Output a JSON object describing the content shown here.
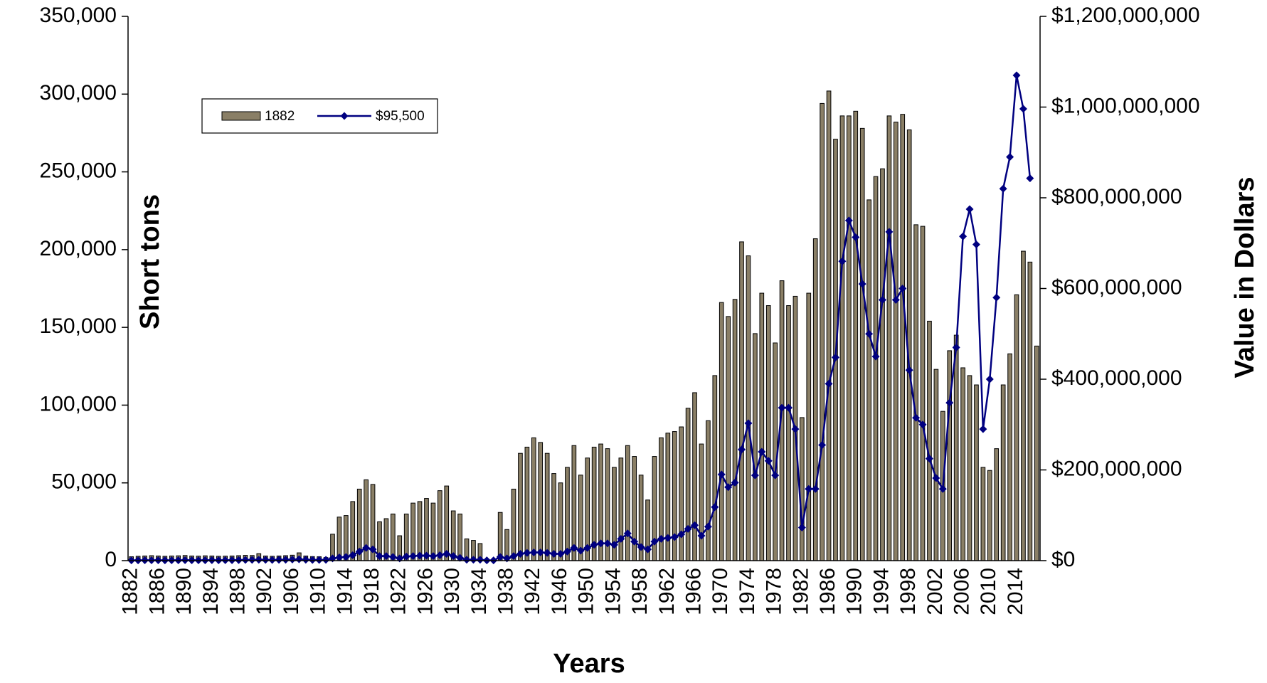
{
  "chart_data": {
    "type": "bar_line",
    "x_label": "Years",
    "y_label": "Short tons",
    "y2_label": "Value in Dollars",
    "categories": [
      "1882",
      null,
      null,
      null,
      "1886",
      null,
      null,
      null,
      "1890",
      null,
      null,
      null,
      "1894",
      null,
      null,
      null,
      "1898",
      null,
      null,
      null,
      "1902",
      null,
      null,
      null,
      "1906",
      null,
      null,
      null,
      "1910",
      null,
      null,
      null,
      "1914",
      null,
      null,
      null,
      "1918",
      null,
      null,
      null,
      "1922",
      null,
      null,
      null,
      "1926",
      null,
      null,
      null,
      "1930",
      null,
      null,
      null,
      "1934",
      null,
      null,
      null,
      "1938",
      null,
      null,
      null,
      "1942",
      null,
      null,
      null,
      "1946",
      null,
      null,
      null,
      "1950",
      null,
      null,
      null,
      "1954",
      null,
      null,
      null,
      "1958",
      null,
      null,
      null,
      "1962",
      null,
      null,
      null,
      "1966",
      null,
      null,
      null,
      "1970",
      null,
      null,
      null,
      "1974",
      null,
      null,
      null,
      "1978",
      null,
      null,
      null,
      "1982",
      null,
      null,
      null,
      "1986",
      null,
      null,
      null,
      "1990",
      null,
      null,
      null,
      "1994",
      null,
      null,
      null,
      "1998",
      null,
      null,
      null,
      "2002",
      null,
      null,
      null,
      "2006",
      null,
      null,
      null,
      "2010",
      null,
      null,
      null,
      "2014",
      null,
      null,
      null
    ],
    "series": [
      {
        "name": "1882",
        "type": "bar",
        "color": "#8a7f66",
        "values": [
          2500,
          2800,
          3000,
          3200,
          3000,
          2800,
          3000,
          3100,
          3300,
          3000,
          2900,
          3100,
          3000,
          2800,
          2900,
          3000,
          3200,
          3400,
          3300,
          4500,
          3000,
          2800,
          3000,
          3200,
          3500,
          5000,
          3000,
          2600,
          2500,
          2000,
          17000,
          28000,
          29000,
          38000,
          46000,
          52000,
          49000,
          25000,
          27000,
          30000,
          16000,
          30000,
          37000,
          38000,
          40000,
          37000,
          45000,
          48000,
          32000,
          30000,
          14000,
          13000,
          11000,
          1000,
          1000,
          31000,
          20000,
          46000,
          69000,
          73000,
          79000,
          76000,
          69000,
          56000,
          50000,
          60000,
          74000,
          55000,
          66000,
          73000,
          75000,
          72000,
          60000,
          66000,
          74000,
          67000,
          55000,
          39000,
          67000,
          79000,
          82000,
          83000,
          86000,
          98000,
          108000,
          75000,
          90000,
          119000,
          166000,
          157000,
          168000,
          205000,
          196000,
          146000,
          172000,
          164000,
          140000,
          180000,
          164000,
          170000,
          92000,
          172000,
          207000,
          294000,
          302000,
          271000,
          286000,
          286000,
          289000,
          278000,
          232000,
          247000,
          252000,
          286000,
          282000,
          287000,
          277000,
          216000,
          215000,
          154000,
          123000,
          96000,
          135000,
          145000,
          124000,
          119000,
          113000,
          60000,
          58000,
          72000,
          113000,
          133000,
          171000,
          199000,
          192000,
          138000
        ]
      },
      {
        "name": "$95,500",
        "type": "line",
        "axis": "y2",
        "color": "#000080",
        "values": [
          500000,
          600000,
          700000,
          800000,
          700000,
          600000,
          700000,
          800000,
          900000,
          800000,
          700000,
          800000,
          900000,
          800000,
          900000,
          1000000,
          1200000,
          1500000,
          1800000,
          2000000,
          1800000,
          1500000,
          1700000,
          2000000,
          2500000,
          3000000,
          2000000,
          1500000,
          1500000,
          1800000,
          5000000,
          7000000,
          8000000,
          12000000,
          20000000,
          28000000,
          25000000,
          10000000,
          10000000,
          8000000,
          5000000,
          9000000,
          10000000,
          11000000,
          11000000,
          10000000,
          12000000,
          15000000,
          10000000,
          6000000,
          2000000,
          2000000,
          2000000,
          500000,
          500000,
          8000000,
          5000000,
          10000000,
          15000000,
          17000000,
          18000000,
          18000000,
          17000000,
          15000000,
          15000000,
          20000000,
          28000000,
          22000000,
          28000000,
          35000000,
          38000000,
          38000000,
          35000000,
          48000000,
          60000000,
          42000000,
          30000000,
          25000000,
          42000000,
          48000000,
          50000000,
          52000000,
          58000000,
          70000000,
          78000000,
          55000000,
          75000000,
          118000000,
          190000000,
          162000000,
          172000000,
          245000000,
          303000000,
          188000000,
          240000000,
          220000000,
          188000000,
          337000000,
          337000000,
          290000000,
          73000000,
          158000000,
          158000000,
          255000000,
          390000000,
          448000000,
          660000000,
          750000000,
          713000000,
          610000000,
          500000000,
          450000000,
          575000000,
          725000000,
          575000000,
          600000000,
          420000000,
          315000000,
          300000000,
          225000000,
          182000000,
          158000000,
          348000000,
          470000000,
          715000000,
          775000000,
          697000000,
          290000000,
          400000000,
          580000000,
          820000000,
          890000000,
          1070000000,
          996000000,
          843000000,
          null
        ]
      }
    ],
    "ylim": [
      0,
      350000
    ],
    "yticks": [
      0,
      {
        "value": 50000,
        "label": "50,000"
      },
      {
        "value": 100000,
        "label": "100,000"
      },
      {
        "value": 150000,
        "label": "150,000"
      },
      {
        "value": 200000,
        "label": "200,000"
      },
      {
        "value": 250000,
        "label": "250,000"
      },
      {
        "value": 300000,
        "label": "300,000"
      },
      {
        "value": 350000,
        "label": "350,000"
      }
    ],
    "y2lim": [
      0,
      1200000000
    ],
    "y2ticks": [
      {
        "value": 0,
        "label": "$0"
      },
      {
        "value": 200000000,
        "label": "$200,000,000"
      },
      {
        "value": 400000000,
        "label": "$400,000,000"
      },
      {
        "value": 600000000,
        "label": "$600,000,000"
      },
      {
        "value": 800000000,
        "label": "$800,000,000"
      },
      {
        "value": 1000000000,
        "label": "$1,000,000,000"
      },
      {
        "value": 1200000000,
        "label": "$1,200,000,000"
      }
    ]
  }
}
